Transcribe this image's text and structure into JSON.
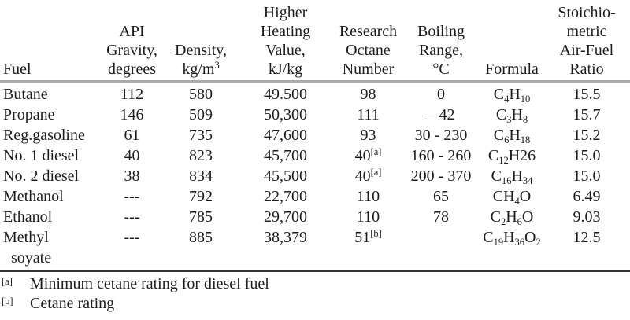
{
  "table": {
    "columns": [
      {
        "key": "fuel",
        "label": "Fuel"
      },
      {
        "key": "api",
        "label": "API\nGravity,\ndegrees"
      },
      {
        "key": "density",
        "label": "Density,\nkg/m^{3}"
      },
      {
        "key": "hhv",
        "label": "Higher\nHeating\nValue,\nkJ/kg"
      },
      {
        "key": "ron",
        "label": "Research\nOctane\nNumber"
      },
      {
        "key": "boiling",
        "label": "Boiling\nRange,\n°C"
      },
      {
        "key": "formula",
        "label": "Formula"
      },
      {
        "key": "ratio",
        "label": "Stoichio-\nmetric\nAir-Fuel\nRatio"
      }
    ],
    "rows": [
      {
        "fuel": "Butane",
        "api": "112",
        "density": "580",
        "hhv": "49.500",
        "ron": "98",
        "boiling": "0",
        "formula": "C_{4}H_{10}",
        "ratio": "15.5"
      },
      {
        "fuel": "Propane",
        "api": "146",
        "density": "509",
        "hhv": "50,300",
        "ron": "111",
        "boiling": "– 42",
        "formula": "C_{3}H_{8}",
        "ratio": "15.7"
      },
      {
        "fuel": "Reg.gasoline",
        "api": "61",
        "density": "735",
        "hhv": "47,600",
        "ron": "93",
        "boiling": "30 - 230",
        "formula": "C_{6}H_{18}",
        "ratio": "15.2"
      },
      {
        "fuel": "No. 1 diesel",
        "api": "40",
        "density": "823",
        "hhv": "45,700",
        "ron": "40^{[a]}",
        "boiling": "160 - 260",
        "formula": "C_{12}H26",
        "ratio": "15.0"
      },
      {
        "fuel": "No. 2 diesel",
        "api": "38",
        "density": "834",
        "hhv": "45,500",
        "ron": "40^{[a]}",
        "boiling": "200 - 370",
        "formula": "C_{16}H_{34}",
        "ratio": "15.0"
      },
      {
        "fuel": "Methanol",
        "api": "---",
        "density": "792",
        "hhv": "22,700",
        "ron": "110",
        "boiling": "65",
        "formula": "CH_{4}O",
        "ratio": "6.49"
      },
      {
        "fuel": "Ethanol",
        "api": "---",
        "density": "785",
        "hhv": "29,700",
        "ron": "110",
        "boiling": "78",
        "formula": "C_{2}H_{6}O",
        "ratio": "9.03"
      },
      {
        "fuel": "Methyl\n  soyate",
        "api": "---",
        "density": "885",
        "hhv": "38,379",
        "ron": "51^{[b]}",
        "boiling": "",
        "formula": "C_{19}H_{36}O_{2}",
        "ratio": "12.5"
      }
    ]
  },
  "footnotes": [
    {
      "marker": "[a]",
      "text": "Minimum cetane rating for diesel fuel"
    },
    {
      "marker": "[b]",
      "text": "Cetane rating"
    }
  ]
}
